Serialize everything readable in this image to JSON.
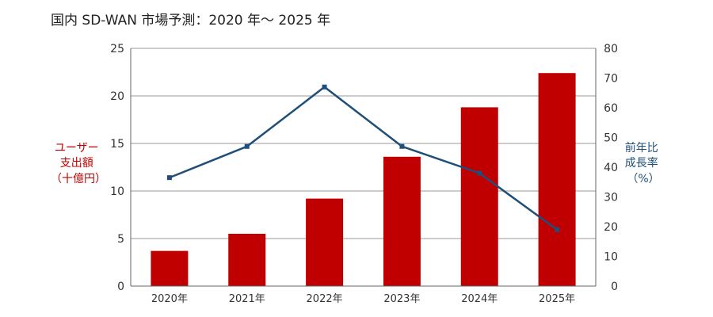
{
  "chart_data": {
    "type": "bar+line",
    "title": "国内 SD-WAN 市場予測：2020 年〜 2025 年",
    "categories": [
      "2020年",
      "2021年",
      "2022年",
      "2023年",
      "2024年",
      "2025年"
    ],
    "series": [
      {
        "name": "ユーザー支出額（十億円）",
        "type": "bar",
        "axis": "left",
        "color": "#c00000",
        "values": [
          3.7,
          5.5,
          9.2,
          13.6,
          18.8,
          22.4
        ]
      },
      {
        "name": "前年比成長率（%）",
        "type": "line",
        "axis": "right",
        "color": "#1f4e79",
        "values": [
          36.5,
          47,
          67,
          47,
          38,
          19
        ]
      }
    ],
    "y_left": {
      "label_lines": [
        "ユーザー",
        "支出額",
        "（十億円）"
      ],
      "range": [
        0,
        25
      ],
      "ticks": [
        "0",
        "5",
        "10",
        "15",
        "20",
        "25"
      ]
    },
    "y_right": {
      "label_lines": [
        "前年比",
        "成長率",
        "（%）"
      ],
      "range": [
        0,
        80
      ],
      "ticks": [
        "0",
        "10",
        "20",
        "30",
        "40",
        "50",
        "60",
        "70",
        "80"
      ]
    },
    "grid": true,
    "legend": "none"
  }
}
